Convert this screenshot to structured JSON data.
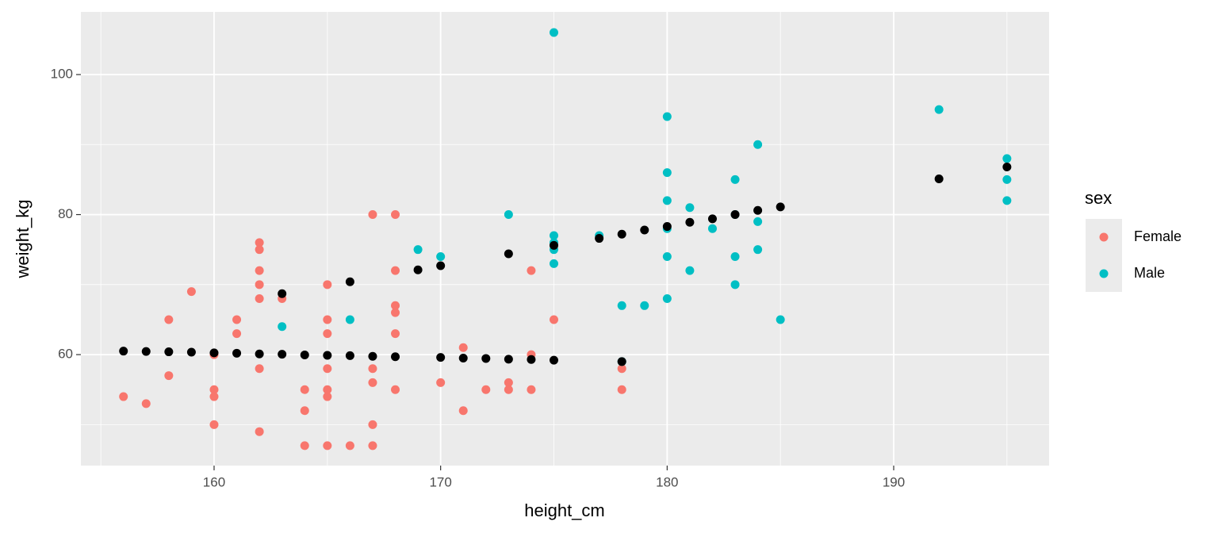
{
  "chart_data": {
    "type": "scatter",
    "x_label": "height_cm",
    "y_label": "weight_kg",
    "xlim": [
      154.12,
      196.86
    ],
    "ylim": [
      44.15,
      108.95
    ],
    "xticks": [
      160,
      170,
      180,
      190
    ],
    "yticks": [
      60,
      80,
      100
    ],
    "xminor_ticks": [
      155,
      165,
      175,
      185,
      195
    ],
    "yminor_ticks": [
      50,
      70,
      90
    ],
    "grid": true,
    "legend": "right",
    "legend_title": "sex",
    "series": [
      {
        "name": "Female",
        "color": "#F8766D",
        "x": [
          156,
          157,
          158,
          158,
          159,
          160,
          160,
          160,
          160,
          161,
          161,
          162,
          162,
          162,
          162,
          162,
          162,
          162,
          163,
          164,
          164,
          164,
          165,
          165,
          165,
          165,
          165,
          165,
          165,
          166,
          167,
          167,
          167,
          167,
          167,
          168,
          168,
          168,
          168,
          168,
          168,
          170,
          171,
          171,
          172,
          173,
          173,
          174,
          174,
          174,
          175,
          178,
          178
        ],
        "values": [
          54,
          53,
          65,
          57,
          69,
          60,
          55,
          54,
          50,
          65,
          63,
          76,
          75,
          72,
          70,
          68,
          58,
          49,
          68,
          55,
          52,
          47,
          70,
          65,
          63,
          58,
          55,
          54,
          47,
          47,
          80,
          58,
          56,
          50,
          47,
          80,
          72,
          67,
          66,
          63,
          55,
          56,
          61,
          52,
          55,
          56,
          55,
          72,
          60,
          55,
          65,
          58,
          55
        ]
      },
      {
        "name": "Male",
        "color": "#00BFC4",
        "x": [
          163,
          166,
          169,
          170,
          173,
          175,
          175,
          175,
          175,
          175,
          177,
          178,
          178,
          179,
          180,
          180,
          180,
          180,
          180,
          180,
          181,
          181,
          182,
          183,
          183,
          183,
          183,
          184,
          184,
          184,
          185,
          192,
          195,
          195,
          195
        ],
        "values": [
          64,
          65,
          75,
          74,
          80,
          106,
          77,
          76,
          75,
          73,
          77,
          67,
          59,
          67,
          94,
          86,
          82,
          78,
          74,
          68,
          81,
          72,
          78,
          85,
          80,
          74,
          70,
          90,
          79,
          75,
          65,
          95,
          88,
          85,
          82
        ]
      },
      {
        "color": "#000000",
        "x": [
          156,
          157,
          158,
          159,
          160,
          161,
          162,
          163,
          163,
          164,
          165,
          166,
          166,
          167,
          168,
          169,
          170,
          170,
          171,
          172,
          173,
          173,
          174,
          175,
          175,
          177,
          178,
          178,
          179,
          180,
          181,
          182,
          183,
          184,
          185,
          192,
          195
        ],
        "values": [
          60.5,
          60.45,
          60.4,
          60.35,
          60.25,
          60.2,
          60.1,
          60.05,
          68.7,
          59.95,
          59.9,
          59.85,
          70.4,
          59.75,
          59.7,
          72.1,
          59.6,
          72.7,
          59.5,
          59.45,
          59.35,
          74.4,
          59.3,
          59.2,
          75.6,
          76.6,
          59.0,
          77.2,
          77.8,
          78.3,
          78.9,
          79.4,
          80.0,
          80.6,
          81.1,
          85.1,
          86.8
        ]
      }
    ]
  }
}
